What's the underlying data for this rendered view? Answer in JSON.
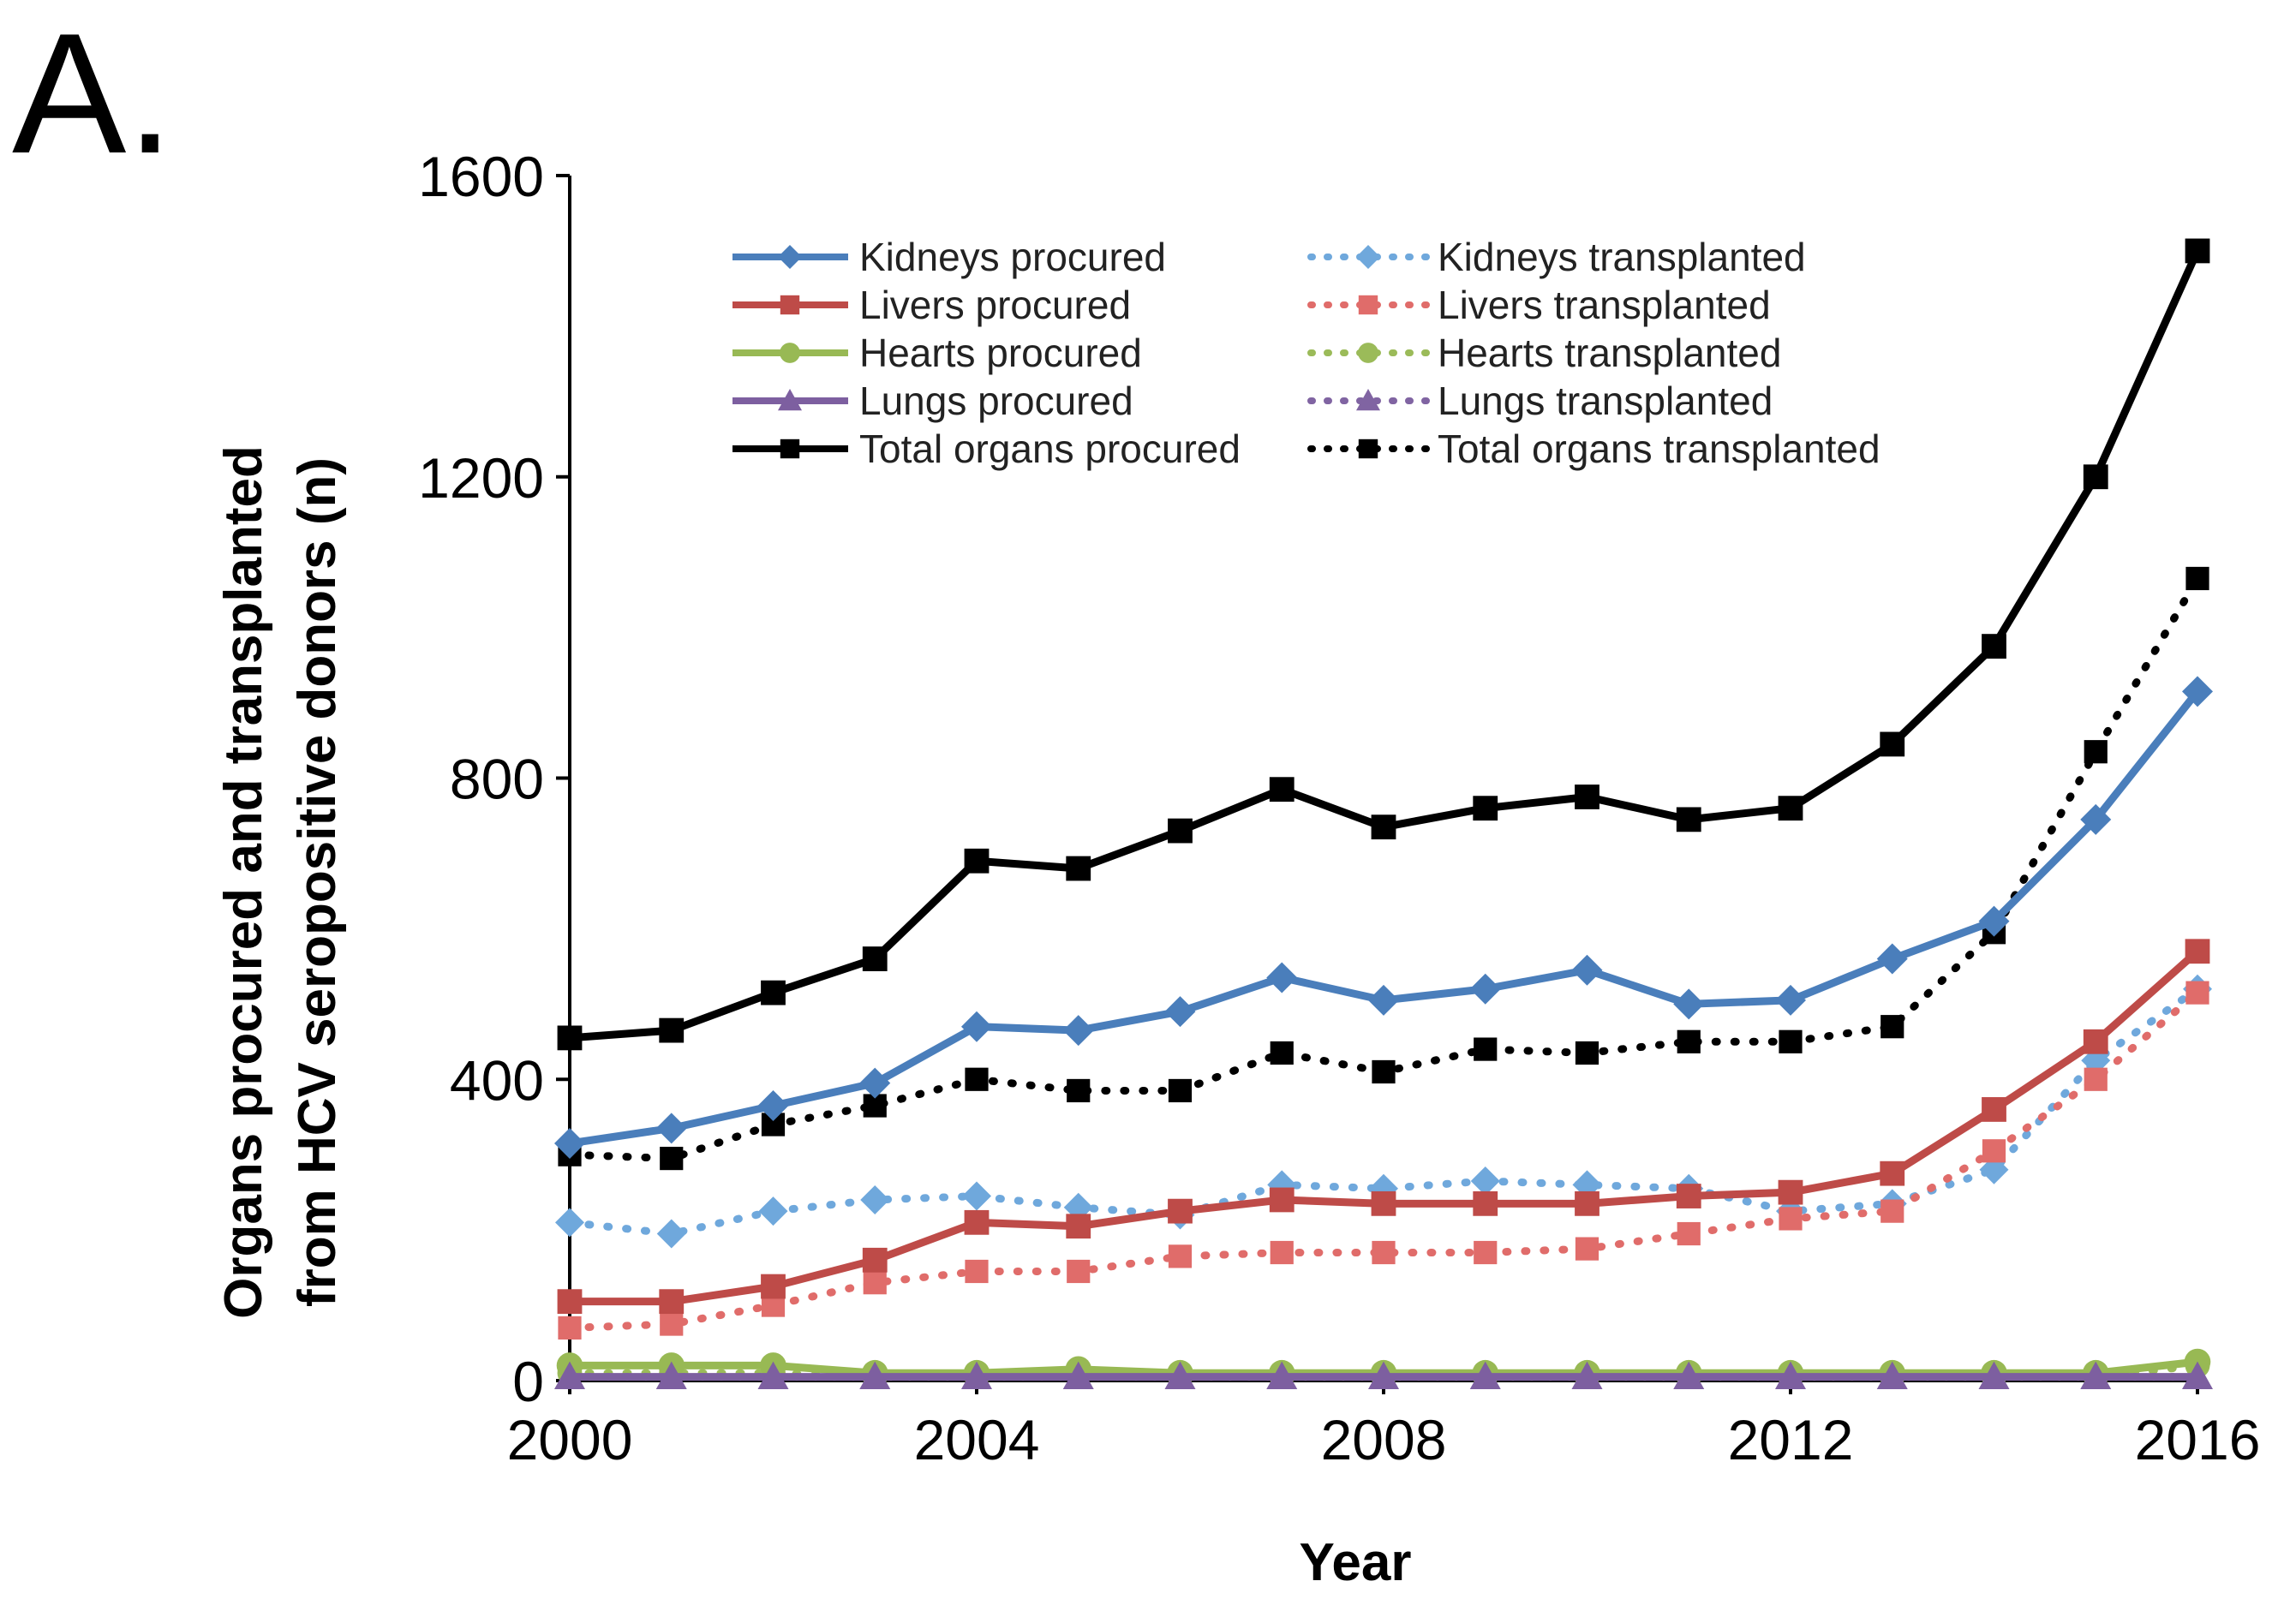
{
  "panel_label": "A.",
  "chart_data": {
    "type": "line",
    "title": "",
    "xlabel": "Year",
    "ylabel_line1": "Organs procured and transplanted",
    "ylabel_line2": "from HCV seropositive donors (n)",
    "xlim": [
      2000,
      2016
    ],
    "ylim": [
      0,
      1600
    ],
    "x_ticks": [
      2000,
      2004,
      2008,
      2012,
      2016
    ],
    "y_ticks": [
      0,
      400,
      800,
      1200,
      1600
    ],
    "grid": false,
    "legend_position": "top",
    "x": [
      2000,
      2001,
      2002,
      2003,
      2004,
      2005,
      2006,
      2007,
      2008,
      2009,
      2010,
      2011,
      2012,
      2013,
      2014,
      2015,
      2016
    ],
    "series": [
      {
        "name": "Kidneys procured",
        "color": "#4a7ebb",
        "marker": "diamond",
        "dash": "solid",
        "values": [
          315,
          335,
          365,
          395,
          470,
          465,
          490,
          535,
          505,
          520,
          545,
          500,
          505,
          560,
          610,
          745,
          915
        ]
      },
      {
        "name": "Livers procured",
        "color": "#be4b48",
        "marker": "square",
        "dash": "solid",
        "values": [
          105,
          105,
          125,
          160,
          210,
          205,
          225,
          240,
          235,
          235,
          235,
          245,
          250,
          275,
          360,
          450,
          570
        ]
      },
      {
        "name": "Hearts procured",
        "color": "#98b954",
        "marker": "circle",
        "dash": "solid",
        "values": [
          20,
          20,
          20,
          10,
          10,
          15,
          10,
          10,
          10,
          10,
          10,
          10,
          10,
          10,
          10,
          10,
          25
        ]
      },
      {
        "name": "Lungs procured",
        "color": "#7d5fa0",
        "marker": "triangle",
        "dash": "solid",
        "values": [
          5,
          5,
          5,
          5,
          5,
          5,
          5,
          5,
          5,
          5,
          5,
          5,
          5,
          5,
          5,
          5,
          5
        ]
      },
      {
        "name": "Total organs procured",
        "color": "#000000",
        "marker": "square",
        "dash": "solid",
        "values": [
          455,
          465,
          515,
          560,
          690,
          680,
          730,
          785,
          735,
          760,
          775,
          745,
          760,
          845,
          975,
          1200,
          1500
        ]
      },
      {
        "name": "Kidneys transplanted",
        "color": "#6fa8dc",
        "marker": "diamond",
        "dash": "dotted",
        "values": [
          210,
          195,
          225,
          240,
          245,
          230,
          220,
          260,
          255,
          265,
          260,
          255,
          225,
          235,
          280,
          425,
          520
        ]
      },
      {
        "name": "Livers transplanted",
        "color": "#e06c6a",
        "marker": "square",
        "dash": "dotted",
        "values": [
          70,
          75,
          100,
          130,
          145,
          145,
          165,
          170,
          170,
          170,
          175,
          195,
          215,
          225,
          305,
          400,
          515
        ]
      },
      {
        "name": "Hearts transplanted",
        "color": "#9bbb59",
        "marker": "circle",
        "dash": "dotted",
        "values": [
          10,
          10,
          10,
          5,
          5,
          10,
          5,
          5,
          5,
          5,
          5,
          5,
          5,
          5,
          5,
          5,
          20
        ]
      },
      {
        "name": "Lungs transplanted",
        "color": "#8064a2",
        "marker": "triangle",
        "dash": "dotted",
        "values": [
          5,
          5,
          5,
          5,
          5,
          5,
          5,
          5,
          5,
          5,
          5,
          5,
          5,
          5,
          5,
          5,
          5
        ]
      },
      {
        "name": "Total organs transplanted",
        "color": "#000000",
        "marker": "square",
        "dash": "dotted",
        "values": [
          300,
          295,
          340,
          365,
          400,
          385,
          385,
          435,
          410,
          440,
          435,
          450,
          450,
          470,
          595,
          835,
          1065
        ]
      }
    ]
  }
}
